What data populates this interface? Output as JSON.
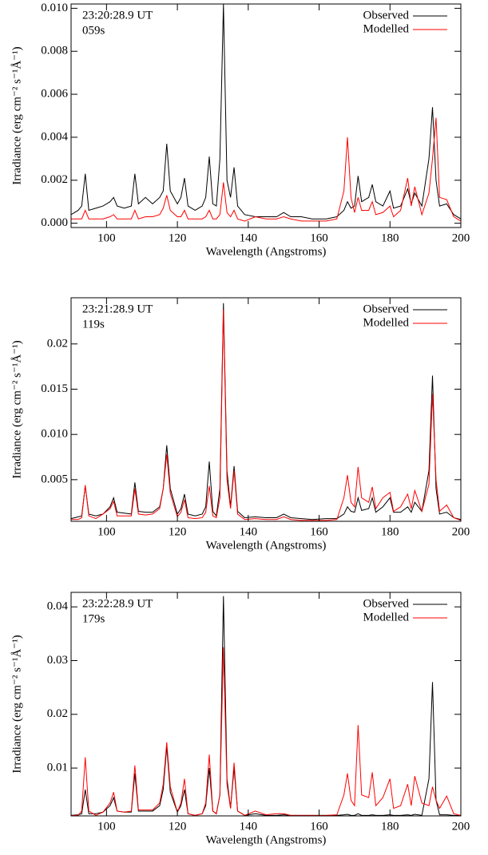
{
  "chart_data": [
    {
      "type": "line",
      "xlabel": "Wavelength (Angstroms)",
      "ylabel": "Irradiance (erg cm⁻² s⁻¹Å⁻¹)",
      "annotations": [
        {
          "text": "23:20:28.9 UT",
          "color": "#000000"
        },
        {
          "text": "059s",
          "color": "#ff0000"
        }
      ],
      "legend": "upper right",
      "xlim": [
        90,
        200
      ],
      "xticks": [
        100,
        120,
        140,
        160,
        180,
        200
      ],
      "ylim": [
        -0.0002,
        0.0102
      ],
      "yticks": [
        {
          "value": 0,
          "label": "0.000"
        },
        0.002,
        0.004,
        0.006,
        0.008,
        {
          "value": 0.01,
          "label": "0.010"
        }
      ],
      "x": [
        90,
        92,
        93,
        94,
        95,
        97,
        99,
        101,
        102,
        103,
        105,
        107,
        108,
        109,
        111,
        113,
        115,
        116,
        117,
        118,
        120,
        121,
        122,
        123,
        125,
        127,
        128,
        129,
        130,
        131,
        132,
        133,
        134,
        135,
        136,
        137,
        139,
        142,
        145,
        148,
        150,
        152,
        155,
        158,
        162,
        165,
        167,
        168,
        169,
        170,
        171,
        172,
        174,
        175,
        176,
        178,
        180,
        181,
        183,
        185,
        186,
        187,
        189,
        191,
        192,
        193,
        194,
        196,
        198,
        200
      ],
      "series": [
        {
          "name": "Observed",
          "color": "#000000",
          "values": [
            0.0004,
            0.0006,
            0.0008,
            0.0023,
            0.0006,
            0.0007,
            0.0008,
            0.001,
            0.0012,
            0.0008,
            0.0007,
            0.0008,
            0.0023,
            0.0009,
            0.0012,
            0.0009,
            0.0012,
            0.0015,
            0.0037,
            0.0015,
            0.0009,
            0.0012,
            0.0021,
            0.0008,
            0.0006,
            0.0008,
            0.0012,
            0.0031,
            0.0009,
            0.0008,
            0.003,
            0.0102,
            0.002,
            0.0012,
            0.0026,
            0.0008,
            0.0004,
            0.0003,
            0.0003,
            0.0003,
            0.0005,
            0.0003,
            0.0003,
            0.0002,
            0.0002,
            0.0003,
            0.0006,
            0.001,
            0.0007,
            0.0008,
            0.0022,
            0.001,
            0.0012,
            0.0018,
            0.001,
            0.0008,
            0.0015,
            0.0007,
            0.0008,
            0.0016,
            0.0009,
            0.0014,
            0.0008,
            0.003,
            0.0054,
            0.002,
            0.0008,
            0.0009,
            0.0004,
            0.0002
          ]
        },
        {
          "name": "Modelled",
          "color": "#ff0000",
          "values": [
            0.0002,
            0.0002,
            0.0002,
            0.0006,
            0.0002,
            0.0002,
            0.0002,
            0.0003,
            0.0004,
            0.0002,
            0.0002,
            0.0002,
            0.0006,
            0.0002,
            0.0003,
            0.0003,
            0.0004,
            0.0007,
            0.0013,
            0.0006,
            0.0003,
            0.0003,
            0.0006,
            0.0002,
            0.0002,
            0.0002,
            0.0003,
            0.0006,
            0.0002,
            0.0002,
            0.0004,
            0.0019,
            0.0005,
            0.0003,
            0.0006,
            0.0002,
            0.0001,
            0.0003,
            0.0002,
            0.0002,
            0.0003,
            0.0002,
            0.0001,
            0.0001,
            0.0001,
            0.0002,
            0.0015,
            0.004,
            0.0012,
            0.0005,
            0.0012,
            0.0006,
            0.0006,
            0.001,
            0.0004,
            0.0005,
            0.0008,
            0.0003,
            0.0006,
            0.0021,
            0.0008,
            0.0017,
            0.0004,
            0.0014,
            0.003,
            0.0049,
            0.0012,
            0.0011,
            0.0003,
            0.0001
          ]
        }
      ]
    },
    {
      "type": "line",
      "xlabel": "Wavelength (Angstroms)",
      "ylabel": "Irradiance (erg cm⁻² s⁻¹Å⁻¹)",
      "annotations": [
        {
          "text": "23:21:28.9 UT",
          "color": "#000000"
        },
        {
          "text": "119s",
          "color": "#ff0000"
        }
      ],
      "legend": "upper right",
      "xlim": [
        90,
        200
      ],
      "xticks": [
        100,
        120,
        140,
        160,
        180,
        200
      ],
      "ylim": [
        0.0004,
        0.0251
      ],
      "yticks": [
        0.005,
        {
          "value": 0.01,
          "label": "0.010"
        },
        0.015,
        0.02
      ],
      "x": [
        90,
        92,
        93,
        94,
        95,
        97,
        99,
        101,
        102,
        103,
        105,
        107,
        108,
        109,
        111,
        113,
        115,
        116,
        117,
        118,
        120,
        121,
        122,
        123,
        125,
        127,
        128,
        129,
        130,
        131,
        132,
        133,
        134,
        135,
        136,
        137,
        139,
        142,
        145,
        148,
        150,
        152,
        155,
        158,
        162,
        165,
        167,
        168,
        169,
        170,
        171,
        172,
        174,
        175,
        176,
        178,
        180,
        181,
        183,
        185,
        186,
        187,
        189,
        191,
        192,
        193,
        194,
        196,
        198,
        200
      ],
      "series": [
        {
          "name": "Observed",
          "color": "#000000",
          "values": [
            0.0007,
            0.0009,
            0.001,
            0.0043,
            0.0012,
            0.001,
            0.0012,
            0.002,
            0.003,
            0.0014,
            0.0013,
            0.0012,
            0.0047,
            0.0015,
            0.0014,
            0.0014,
            0.002,
            0.004,
            0.0088,
            0.004,
            0.0012,
            0.0018,
            0.0034,
            0.0012,
            0.001,
            0.0012,
            0.002,
            0.007,
            0.0015,
            0.001,
            0.004,
            0.0245,
            0.006,
            0.002,
            0.0065,
            0.0015,
            0.0008,
            0.0009,
            0.0008,
            0.0008,
            0.0012,
            0.0008,
            0.0007,
            0.0006,
            0.0007,
            0.0007,
            0.0012,
            0.002,
            0.0015,
            0.0014,
            0.003,
            0.0016,
            0.0018,
            0.003,
            0.0014,
            0.002,
            0.003,
            0.0014,
            0.0014,
            0.002,
            0.0014,
            0.0025,
            0.0015,
            0.006,
            0.0165,
            0.004,
            0.0012,
            0.0014,
            0.0008,
            0.0006
          ]
        },
        {
          "name": "Modelled",
          "color": "#ff0000",
          "values": [
            0.0006,
            0.0006,
            0.0008,
            0.0044,
            0.001,
            0.0007,
            0.0012,
            0.0018,
            0.0026,
            0.001,
            0.001,
            0.001,
            0.004,
            0.0012,
            0.0011,
            0.0012,
            0.0018,
            0.004,
            0.0078,
            0.0035,
            0.0009,
            0.0014,
            0.0028,
            0.0008,
            0.0007,
            0.0008,
            0.0014,
            0.0043,
            0.001,
            0.0008,
            0.003,
            0.0238,
            0.005,
            0.0018,
            0.006,
            0.0012,
            0.0006,
            0.0007,
            0.0006,
            0.0006,
            0.0009,
            0.0006,
            0.0005,
            0.0005,
            0.0005,
            0.0006,
            0.003,
            0.0055,
            0.0025,
            0.002,
            0.0064,
            0.003,
            0.0025,
            0.0042,
            0.0018,
            0.003,
            0.0036,
            0.0015,
            0.002,
            0.0034,
            0.0018,
            0.0038,
            0.0015,
            0.0045,
            0.0145,
            0.005,
            0.0015,
            0.0022,
            0.0008,
            0.0005
          ]
        }
      ]
    },
    {
      "type": "line",
      "xlabel": "Wavelength (Angstroms)",
      "ylabel": "Irradiance (erg cm⁻² s⁻¹Å⁻¹)",
      "annotations": [
        {
          "text": "23:22:28.9 UT",
          "color": "#000000"
        },
        {
          "text": "179s",
          "color": "#ff0000"
        }
      ],
      "legend": "upper right",
      "xlim": [
        90,
        200
      ],
      "xticks": [
        100,
        120,
        140,
        160,
        180,
        200
      ],
      "ylim": [
        0.0011,
        0.0427
      ],
      "yticks": [
        0.01,
        0.02,
        0.03,
        0.04
      ],
      "x": [
        90,
        92,
        93,
        94,
        95,
        97,
        99,
        101,
        102,
        103,
        105,
        107,
        108,
        109,
        111,
        113,
        115,
        116,
        117,
        118,
        120,
        121,
        122,
        123,
        125,
        127,
        128,
        129,
        130,
        131,
        132,
        133,
        134,
        135,
        136,
        137,
        139,
        142,
        145,
        148,
        150,
        152,
        155,
        158,
        162,
        165,
        167,
        168,
        169,
        170,
        171,
        172,
        174,
        175,
        176,
        178,
        180,
        181,
        183,
        185,
        186,
        187,
        189,
        191,
        192,
        193,
        194,
        196,
        198,
        200
      ],
      "series": [
        {
          "name": "Observed",
          "color": "#000000",
          "values": [
            0.0012,
            0.0013,
            0.0015,
            0.006,
            0.0015,
            0.0015,
            0.0018,
            0.003,
            0.0045,
            0.002,
            0.0018,
            0.0018,
            0.009,
            0.002,
            0.002,
            0.002,
            0.003,
            0.006,
            0.014,
            0.0055,
            0.0018,
            0.003,
            0.006,
            0.0015,
            0.0012,
            0.0015,
            0.003,
            0.01,
            0.002,
            0.0015,
            0.005,
            0.042,
            0.008,
            0.0025,
            0.01,
            0.002,
            0.0012,
            0.0015,
            0.0012,
            0.0012,
            0.0013,
            0.0012,
            0.0012,
            0.0012,
            0.0012,
            0.0012,
            0.0013,
            0.0014,
            0.0012,
            0.0012,
            0.0015,
            0.0012,
            0.0012,
            0.0013,
            0.0012,
            0.0012,
            0.0013,
            0.0012,
            0.0012,
            0.0013,
            0.0012,
            0.0014,
            0.0012,
            0.008,
            0.026,
            0.004,
            0.0013,
            0.0013,
            0.0012,
            0.0012
          ]
        },
        {
          "name": "Modelled",
          "color": "#ff0000",
          "values": [
            0.0012,
            0.0012,
            0.002,
            0.012,
            0.002,
            0.0012,
            0.0018,
            0.0035,
            0.0055,
            0.002,
            0.0018,
            0.002,
            0.0105,
            0.0022,
            0.0022,
            0.0022,
            0.0035,
            0.007,
            0.0148,
            0.0065,
            0.0018,
            0.0035,
            0.008,
            0.0015,
            0.0012,
            0.0015,
            0.0035,
            0.0125,
            0.002,
            0.0015,
            0.005,
            0.0325,
            0.007,
            0.0025,
            0.011,
            0.002,
            0.0012,
            0.002,
            0.0013,
            0.0015,
            0.0015,
            0.0012,
            0.0012,
            0.0012,
            0.0012,
            0.0013,
            0.005,
            0.009,
            0.004,
            0.003,
            0.018,
            0.005,
            0.0045,
            0.0092,
            0.003,
            0.0045,
            0.008,
            0.0025,
            0.003,
            0.007,
            0.003,
            0.0085,
            0.0035,
            0.003,
            0.0065,
            0.004,
            0.0025,
            0.0048,
            0.0015,
            0.0012
          ]
        }
      ]
    }
  ]
}
